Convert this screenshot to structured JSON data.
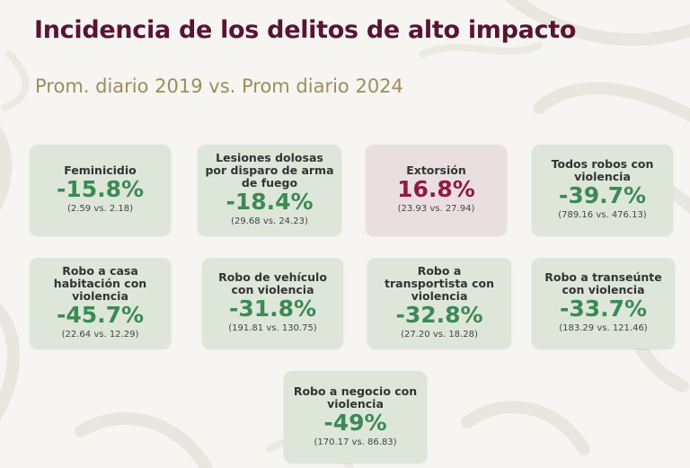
{
  "title": "Incidencia de los delitos de alto impacto",
  "subtitle": "Prom. diario 2019 vs. Prom diario 2024",
  "colors": {
    "title": "#5a1430",
    "subtitle": "#a08c5b",
    "decrease": "#3c8a55",
    "increase": "#8e1a44",
    "card_green": "#dde6d9",
    "card_pink": "#eadfe0"
  },
  "cards": [
    {
      "label": "Feminicidio",
      "change": "-15.8%",
      "comparison": "(2.59 vs. 2.18)"
    },
    {
      "label": "Lesiones dolosas por disparo de arma de fuego",
      "change": "-18.4%",
      "comparison": "(29.68 vs. 24.23)"
    },
    {
      "label": "Extorsión",
      "change": "16.8%",
      "comparison": "(23.93 vs. 27.94)"
    },
    {
      "label": "Todos robos con violencia",
      "change": "-39.7%",
      "comparison": "(789.16 vs. 476.13)"
    },
    {
      "label": "Robo a casa habitación con violencia",
      "change": "-45.7%",
      "comparison": "(22.64 vs. 12.29)"
    },
    {
      "label": "Robo de vehículo con violencia",
      "change": "-31.8%",
      "comparison": "(191.81 vs. 130.75)"
    },
    {
      "label": "Robo a transportista con violencia",
      "change": "-32.8%",
      "comparison": "(27.20 vs. 18.28)"
    },
    {
      "label": "Robo a transeúnte con violencia",
      "change": "-33.7%",
      "comparison": "(183.29 vs. 121.46)"
    },
    {
      "label": "Robo a negocio con violencia",
      "change": "-49%",
      "comparison": "(170.17 vs. 86.83)"
    }
  ]
}
